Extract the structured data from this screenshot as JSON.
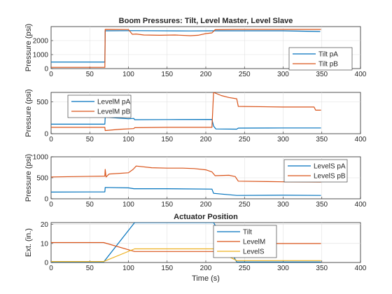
{
  "figure": {
    "xlabel": "Time (s)"
  },
  "chart_data": [
    {
      "type": "line",
      "title": "Boom Pressures: Tilt, Level Master, Level Slave",
      "xlabel": "",
      "ylabel": "Pressure (psi)",
      "xlim": [
        0,
        400
      ],
      "ylim": [
        0,
        3000
      ],
      "xticks": [
        0,
        50,
        100,
        150,
        200,
        250,
        300,
        350,
        400
      ],
      "yticks": [
        0,
        1000,
        2000
      ],
      "grid": true,
      "legend": "bottom-right",
      "series": [
        {
          "name": "Tilt pA",
          "color": "#0072BD",
          "points": [
            [
              0,
              470
            ],
            [
              69.5,
              470
            ],
            [
              70,
              2700
            ],
            [
              110,
              2710
            ],
            [
              180,
              2690
            ],
            [
              210,
              2700
            ],
            [
              240,
              2700
            ],
            [
              300,
              2700
            ],
            [
              348,
              2650
            ]
          ]
        },
        {
          "name": "Tilt pB",
          "color": "#D95319",
          "points": [
            [
              0,
              90
            ],
            [
              69.5,
              90
            ],
            [
              70,
              2800
            ],
            [
              100,
              2790
            ],
            [
              105,
              2450
            ],
            [
              110,
              2470
            ],
            [
              120,
              2400
            ],
            [
              140,
              2380
            ],
            [
              160,
              2400
            ],
            [
              180,
              2350
            ],
            [
              190,
              2380
            ],
            [
              200,
              2500
            ],
            [
              208,
              2550
            ],
            [
              212,
              2780
            ],
            [
              240,
              2800
            ],
            [
              300,
              2800
            ],
            [
              349,
              2800
            ]
          ]
        }
      ]
    },
    {
      "type": "line",
      "title": "",
      "xlabel": "",
      "ylabel": "Pressure (psi)",
      "xlim": [
        0,
        400
      ],
      "ylim": [
        0,
        650
      ],
      "xticks": [
        0,
        50,
        100,
        150,
        200,
        250,
        300,
        350,
        400
      ],
      "yticks": [
        0,
        500
      ],
      "grid": true,
      "legend": "top-left",
      "series": [
        {
          "name": "LevelM pA",
          "color": "#0072BD",
          "points": [
            [
              0,
              150
            ],
            [
              69.5,
              150
            ],
            [
              70,
              260
            ],
            [
              100,
              235
            ],
            [
              107,
              240
            ],
            [
              108,
              220
            ],
            [
              150,
              222
            ],
            [
              208,
              225
            ],
            [
              210,
              120
            ],
            [
              213,
              75
            ],
            [
              240,
              72
            ],
            [
              242,
              88
            ],
            [
              300,
              90
            ],
            [
              349,
              90
            ]
          ]
        },
        {
          "name": "LevelM pB",
          "color": "#D95319",
          "points": [
            [
              0,
              100
            ],
            [
              69.5,
              100
            ],
            [
              70,
              50
            ],
            [
              90,
              70
            ],
            [
              107,
              80
            ],
            [
              108,
              95
            ],
            [
              150,
              100
            ],
            [
              208,
              100
            ],
            [
              210,
              650
            ],
            [
              220,
              600
            ],
            [
              230,
              570
            ],
            [
              240,
              550
            ],
            [
              242,
              430
            ],
            [
              300,
              420
            ],
            [
              340,
              420
            ],
            [
              342,
              370
            ],
            [
              349,
              370
            ]
          ]
        }
      ]
    },
    {
      "type": "line",
      "title": "",
      "xlabel": "",
      "ylabel": "Pressure (psi)",
      "xlim": [
        0,
        400
      ],
      "ylim": [
        0,
        1000
      ],
      "xticks": [
        0,
        50,
        100,
        150,
        200,
        250,
        300,
        350,
        400
      ],
      "yticks": [
        0,
        500,
        1000
      ],
      "grid": true,
      "legend": "top-right",
      "series": [
        {
          "name": "LevelS pA",
          "color": "#0072BD",
          "points": [
            [
              0,
              160
            ],
            [
              69.5,
              165
            ],
            [
              70,
              270
            ],
            [
              100,
              260
            ],
            [
              107,
              240
            ],
            [
              150,
              240
            ],
            [
              208,
              230
            ],
            [
              210,
              130
            ],
            [
              240,
              80
            ],
            [
              300,
              85
            ],
            [
              349,
              80
            ]
          ]
        },
        {
          "name": "LevelS pB",
          "color": "#D95319",
          "points": [
            [
              0,
              520
            ],
            [
              69.5,
              540
            ],
            [
              70,
              700
            ],
            [
              71,
              520
            ],
            [
              75,
              590
            ],
            [
              100,
              620
            ],
            [
              106,
              700
            ],
            [
              110,
              780
            ],
            [
              130,
              740
            ],
            [
              150,
              730
            ],
            [
              170,
              730
            ],
            [
              185,
              720
            ],
            [
              200,
              690
            ],
            [
              208,
              640
            ],
            [
              212,
              550
            ],
            [
              230,
              560
            ],
            [
              238,
              530
            ],
            [
              242,
              420
            ],
            [
              280,
              410
            ],
            [
              300,
              405
            ],
            [
              349,
              400
            ]
          ]
        }
      ]
    },
    {
      "type": "line",
      "title": "Actuator Position",
      "xlabel": "Time (s)",
      "ylabel": "Ext. (in.)",
      "xlim": [
        0,
        400
      ],
      "ylim": [
        0,
        21
      ],
      "xticks": [
        0,
        50,
        100,
        150,
        200,
        250,
        300,
        350,
        400
      ],
      "yticks": [
        0,
        10,
        20
      ],
      "grid": true,
      "legend": "right-center",
      "series": [
        {
          "name": "Tilt",
          "color": "#0072BD",
          "points": [
            [
              0,
              0.3
            ],
            [
              68,
              0.3
            ],
            [
              108,
              21
            ],
            [
              210,
              21
            ],
            [
              240,
              0.3
            ],
            [
              349,
              0.3
            ]
          ]
        },
        {
          "name": "LevelM",
          "color": "#D95319",
          "points": [
            [
              0,
              10.5
            ],
            [
              68,
              10.5
            ],
            [
              108,
              5.8
            ],
            [
              210,
              5.8
            ],
            [
              240,
              10
            ],
            [
              349,
              10
            ]
          ]
        },
        {
          "name": "LevelS",
          "color": "#EDB120",
          "points": [
            [
              0,
              0.5
            ],
            [
              68,
              0.5
            ],
            [
              108,
              7.2
            ],
            [
              210,
              7.2
            ],
            [
              240,
              1
            ],
            [
              349,
              1
            ]
          ]
        }
      ]
    }
  ]
}
